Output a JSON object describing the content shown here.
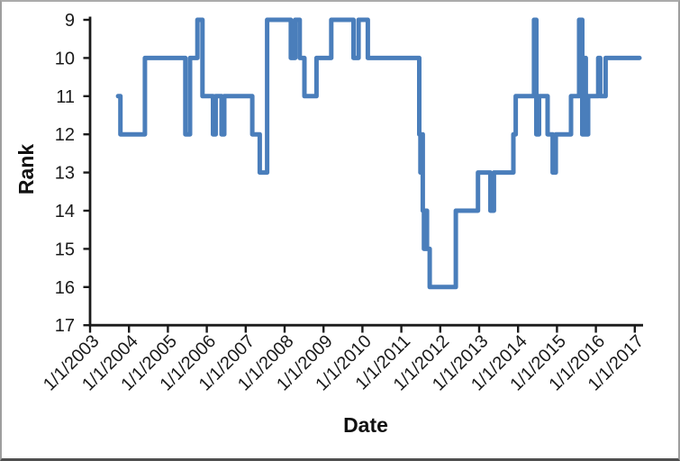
{
  "chart_data": {
    "type": "line",
    "title": "",
    "xlabel": "Date",
    "ylabel": "Rank",
    "x_start_year": 2003,
    "x_tick_labels": [
      "1/1/2003",
      "1/1/2004",
      "1/1/2005",
      "1/1/2006",
      "1/1/2007",
      "1/1/2008",
      "1/1/2009",
      "1/1/2010",
      "1/1/2011",
      "1/1/2012",
      "1/1/2013",
      "1/1/2014",
      "1/1/2015",
      "1/1/2016",
      "1/1/2017"
    ],
    "y_ticks": [
      9,
      10,
      11,
      12,
      13,
      14,
      15,
      16,
      17
    ],
    "y_axis_reversed": true,
    "ylim": [
      9,
      17
    ],
    "xlim_years": [
      2003,
      2017.2
    ],
    "grid": false,
    "legend": "none",
    "step_mode": "after",
    "line_color": "#4A7EBB",
    "axis_color": "#1a1a1a",
    "series": [
      {
        "name": "Rank",
        "points_format": "[decimal_year, rank]",
        "points": [
          [
            2003.72,
            11
          ],
          [
            2003.78,
            12
          ],
          [
            2004.41,
            10
          ],
          [
            2005.45,
            12
          ],
          [
            2005.57,
            10
          ],
          [
            2005.76,
            9
          ],
          [
            2005.89,
            11
          ],
          [
            2006.16,
            12
          ],
          [
            2006.23,
            11
          ],
          [
            2006.38,
            12
          ],
          [
            2006.45,
            11
          ],
          [
            2007.17,
            12
          ],
          [
            2007.36,
            13
          ],
          [
            2007.55,
            9
          ],
          [
            2008.16,
            10
          ],
          [
            2008.27,
            9
          ],
          [
            2008.39,
            10
          ],
          [
            2008.51,
            11
          ],
          [
            2008.82,
            10
          ],
          [
            2009.2,
            9
          ],
          [
            2009.77,
            10
          ],
          [
            2009.9,
            9
          ],
          [
            2010.14,
            10
          ],
          [
            2011.46,
            12
          ],
          [
            2011.49,
            13
          ],
          [
            2011.52,
            12
          ],
          [
            2011.55,
            14
          ],
          [
            2011.58,
            15
          ],
          [
            2011.62,
            14
          ],
          [
            2011.66,
            15
          ],
          [
            2011.73,
            16
          ],
          [
            2012.4,
            14
          ],
          [
            2012.97,
            13
          ],
          [
            2013.29,
            14
          ],
          [
            2013.38,
            13
          ],
          [
            2013.88,
            12
          ],
          [
            2013.94,
            11
          ],
          [
            2014.41,
            9
          ],
          [
            2014.47,
            12
          ],
          [
            2014.54,
            11
          ],
          [
            2014.76,
            12
          ],
          [
            2014.89,
            13
          ],
          [
            2014.97,
            12
          ],
          [
            2015.36,
            11
          ],
          [
            2015.57,
            9
          ],
          [
            2015.65,
            12
          ],
          [
            2015.7,
            10
          ],
          [
            2015.74,
            12
          ],
          [
            2015.8,
            11
          ],
          [
            2016.06,
            10
          ],
          [
            2016.11,
            11
          ],
          [
            2016.25,
            10
          ],
          [
            2017.12,
            10
          ]
        ]
      }
    ]
  }
}
